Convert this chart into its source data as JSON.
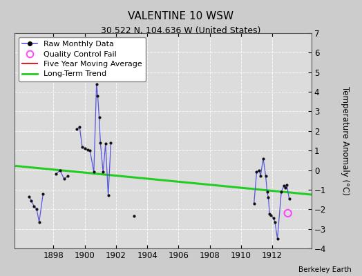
{
  "title": "VALENTINE 10 WSW",
  "subtitle": "30.522 N, 104.636 W (United States)",
  "ylabel": "Temperature Anomaly (°C)",
  "credit": "Berkeley Earth",
  "background_color": "#cccccc",
  "plot_bg_color": "#dcdcdc",
  "xlim": [
    1895.5,
    1914.5
  ],
  "ylim": [
    -4,
    7
  ],
  "yticks": [
    -4,
    -3,
    -2,
    -1,
    0,
    1,
    2,
    3,
    4,
    5,
    6,
    7
  ],
  "xticks": [
    1898,
    1900,
    1902,
    1904,
    1906,
    1908,
    1910,
    1912
  ],
  "raw_data_groups": [
    [
      [
        1896.42,
        -1.35
      ],
      [
        1896.58,
        -1.55
      ],
      [
        1896.75,
        -1.85
      ],
      [
        1896.92,
        -2.0
      ],
      [
        1897.08,
        -2.65
      ],
      [
        1897.33,
        -1.2
      ]
    ],
    [
      [
        1898.17,
        -0.2
      ],
      [
        1898.42,
        0.0
      ],
      [
        1898.67,
        -0.45
      ],
      [
        1898.92,
        -0.3
      ]
    ],
    [
      [
        1899.5,
        2.1
      ],
      [
        1899.67,
        2.2
      ],
      [
        1899.83,
        1.2
      ],
      [
        1900.0,
        1.1
      ],
      [
        1900.17,
        1.05
      ],
      [
        1900.33,
        1.0
      ],
      [
        1900.58,
        -0.1
      ],
      [
        1900.75,
        4.4
      ],
      [
        1900.83,
        3.8
      ],
      [
        1900.92,
        2.7
      ],
      [
        1901.0,
        1.4
      ],
      [
        1901.17,
        -0.1
      ],
      [
        1901.33,
        1.35
      ],
      [
        1901.5,
        -1.3
      ],
      [
        1901.67,
        1.4
      ]
    ],
    [
      [
        1903.17,
        -2.35
      ]
    ],
    [
      [
        1910.83,
        -1.7
      ],
      [
        1911.0,
        -0.1
      ],
      [
        1911.17,
        0.0
      ],
      [
        1911.25,
        -0.3
      ],
      [
        1911.42,
        0.6
      ],
      [
        1911.58,
        -0.3
      ],
      [
        1911.67,
        -1.1
      ],
      [
        1911.75,
        -1.4
      ],
      [
        1911.83,
        -2.25
      ],
      [
        1911.92,
        -2.3
      ],
      [
        1912.08,
        -2.45
      ],
      [
        1912.17,
        -2.65
      ],
      [
        1912.33,
        -3.5
      ],
      [
        1912.58,
        -1.1
      ],
      [
        1912.75,
        -0.8
      ],
      [
        1912.83,
        -0.9
      ],
      [
        1912.92,
        -0.75
      ],
      [
        1913.08,
        -1.45
      ]
    ]
  ],
  "qc_fail_point": [
    1913.0,
    -2.2
  ],
  "trend_x": [
    1895.5,
    1914.5
  ],
  "trend_y": [
    0.22,
    -1.25
  ],
  "raw_line_color": "#5555dd",
  "raw_dot_color": "#111111",
  "trend_color": "#22cc22",
  "ma_color": "#dd2222",
  "qc_color": "#ff44ff"
}
